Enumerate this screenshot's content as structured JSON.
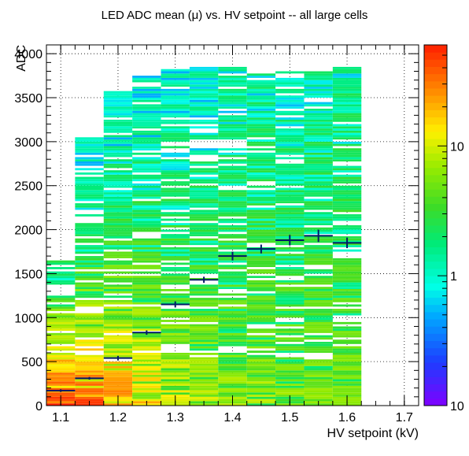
{
  "chart_data": {
    "type": "heatmap",
    "title": "LED ADC mean (μ) vs. HV setpoint -- all large cells",
    "xlabel": "HV setpoint (kV)",
    "ylabel": "ADC",
    "xlim": [
      1.075,
      1.725
    ],
    "ylim": [
      0,
      4100
    ],
    "x_ticks": [
      "1.1",
      "1.2",
      "1.3",
      "1.4",
      "1.5",
      "1.6",
      "1.7"
    ],
    "x_tick_values": [
      1.1,
      1.2,
      1.3,
      1.4,
      1.5,
      1.6,
      1.7
    ],
    "y_ticks": [
      "0",
      "500",
      "1000",
      "1500",
      "2000",
      "2500",
      "3000",
      "3500",
      "4000"
    ],
    "y_tick_values": [
      0,
      500,
      1000,
      1500,
      2000,
      2500,
      3000,
      3500,
      4000
    ],
    "grid": true,
    "colorbar": {
      "scale": "log",
      "range": [
        0.1,
        60
      ],
      "labels": [
        "10",
        "1",
        "10"
      ],
      "label_values": [
        10,
        1,
        0.1
      ]
    },
    "profile": {
      "x": [
        1.1,
        1.15,
        1.2,
        1.25,
        1.3,
        1.35,
        1.4,
        1.45,
        1.5,
        1.55,
        1.6
      ],
      "y": [
        170,
        310,
        540,
        830,
        1150,
        1430,
        1700,
        1780,
        1880,
        1930,
        1850
      ],
      "yerr": [
        15,
        15,
        25,
        25,
        35,
        35,
        50,
        50,
        60,
        70,
        60
      ],
      "xerr": 0.025
    },
    "columns": [
      {
        "x": 1.1,
        "ymax": 1650,
        "low_level": 40,
        "decay": 450
      },
      {
        "x": 1.15,
        "ymax": 3050,
        "low_level": 30,
        "decay": 600
      },
      {
        "x": 1.2,
        "ymax": 3600,
        "low_level": 20,
        "decay": 800
      },
      {
        "x": 1.25,
        "ymax": 3750,
        "low_level": 12,
        "decay": 1000
      },
      {
        "x": 1.3,
        "ymax": 3830,
        "low_level": 8,
        "decay": 1200
      },
      {
        "x": 1.35,
        "ymax": 3830,
        "low_level": 6,
        "decay": 1400
      },
      {
        "x": 1.4,
        "ymax": 3830,
        "low_level": 5,
        "decay": 1600
      },
      {
        "x": 1.45,
        "ymax": 3800,
        "low_level": 5,
        "decay": 1800
      },
      {
        "x": 1.5,
        "ymax": 3780,
        "low_level": 4,
        "decay": 2000
      },
      {
        "x": 1.55,
        "ymax": 3780,
        "low_level": 4,
        "decay": 2100
      },
      {
        "x": 1.6,
        "ymax": 3830,
        "low_level": 4,
        "decay": 2200
      }
    ]
  }
}
